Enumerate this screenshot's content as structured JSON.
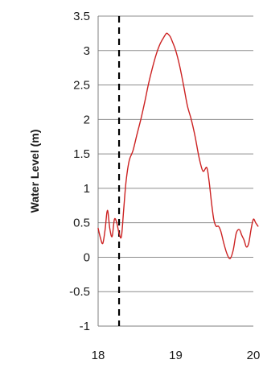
{
  "chart_data": {
    "type": "line",
    "title": "",
    "xlabel": "",
    "ylabel": "Water Level (m)",
    "xlim": [
      18,
      20
    ],
    "ylim": [
      -1,
      3.5
    ],
    "x_ticks": [
      "18",
      "19",
      "20"
    ],
    "x_tick_values": [
      18,
      19,
      20
    ],
    "y_ticks": [
      "-1",
      "-0.5",
      "0",
      "0.5",
      "1",
      "1.5",
      "2",
      "2.5",
      "3",
      "3.5"
    ],
    "y_tick_values": [
      -1,
      -0.5,
      0,
      0.5,
      1,
      1.5,
      2,
      2.5,
      3,
      3.5
    ],
    "grid": "horizontal",
    "legend": "none",
    "vertical_marker": {
      "x": 18.27,
      "style": "dashed",
      "color": "#000000"
    },
    "series": [
      {
        "color": "#cc2222",
        "x": [
          18.0,
          18.03,
          18.06,
          18.09,
          18.12,
          18.15,
          18.18,
          18.21,
          18.24,
          18.27,
          18.3,
          18.33,
          18.36,
          18.4,
          18.45,
          18.5,
          18.55,
          18.6,
          18.65,
          18.7,
          18.75,
          18.8,
          18.85,
          18.88,
          18.9,
          18.93,
          18.96,
          19.0,
          19.05,
          19.1,
          19.15,
          19.2,
          19.25,
          19.3,
          19.35,
          19.4,
          19.43,
          19.46,
          19.49,
          19.52,
          19.55,
          19.58,
          19.62,
          19.66,
          19.7,
          19.74,
          19.78,
          19.82,
          19.85,
          19.88,
          19.91,
          19.94,
          19.97,
          20.0,
          20.03,
          20.06
        ],
        "y": [
          0.42,
          0.28,
          0.2,
          0.4,
          0.68,
          0.42,
          0.3,
          0.55,
          0.5,
          0.35,
          0.3,
          0.7,
          1.1,
          1.4,
          1.55,
          1.78,
          2.0,
          2.25,
          2.52,
          2.75,
          2.95,
          3.1,
          3.2,
          3.25,
          3.24,
          3.2,
          3.12,
          3.0,
          2.78,
          2.5,
          2.2,
          2.0,
          1.75,
          1.45,
          1.25,
          1.3,
          1.1,
          0.8,
          0.55,
          0.45,
          0.45,
          0.38,
          0.2,
          0.05,
          -0.02,
          0.1,
          0.35,
          0.4,
          0.32,
          0.25,
          0.15,
          0.2,
          0.4,
          0.55,
          0.5,
          0.45
        ]
      }
    ]
  }
}
